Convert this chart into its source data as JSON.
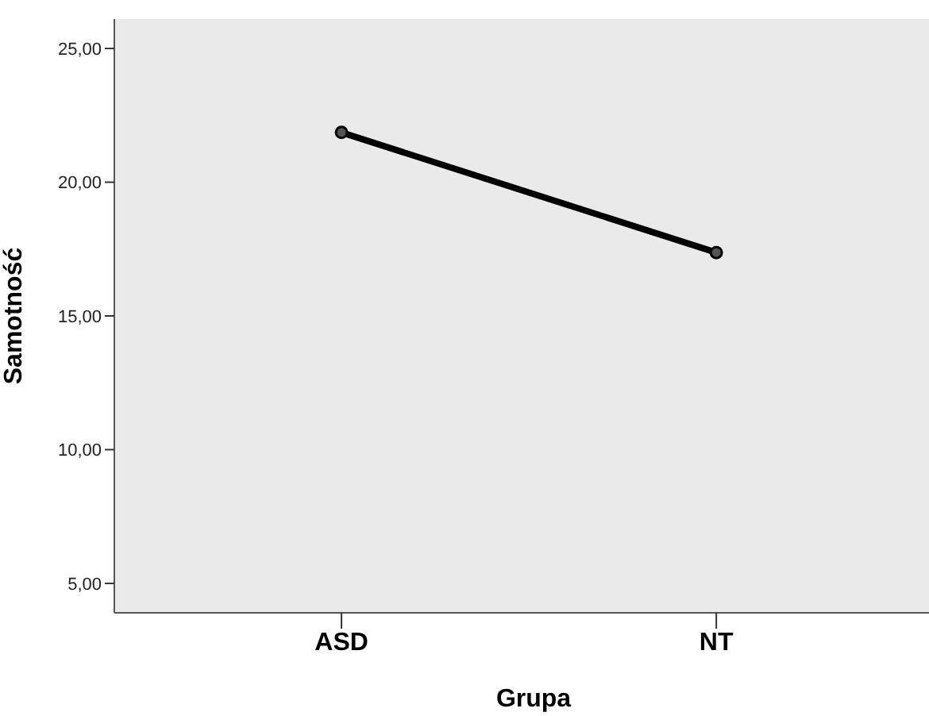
{
  "chart_data": {
    "type": "line",
    "xlabel": "Grupa",
    "ylabel": "Samotność",
    "categories": [
      "ASD",
      "NT"
    ],
    "series": [
      {
        "color": "#000000",
        "values": [
          21.86,
          17.37
        ]
      }
    ],
    "ylim": [
      3.9,
      26.1
    ],
    "yticks": [
      {
        "value": 5,
        "label": "5,00"
      },
      {
        "value": 10,
        "label": "10,00"
      },
      {
        "value": 15,
        "label": "15,00"
      },
      {
        "value": 20,
        "label": "20,00"
      },
      {
        "value": 25,
        "label": "25,00"
      }
    ],
    "grid": false,
    "marker": "circle",
    "line_style": "solid"
  }
}
